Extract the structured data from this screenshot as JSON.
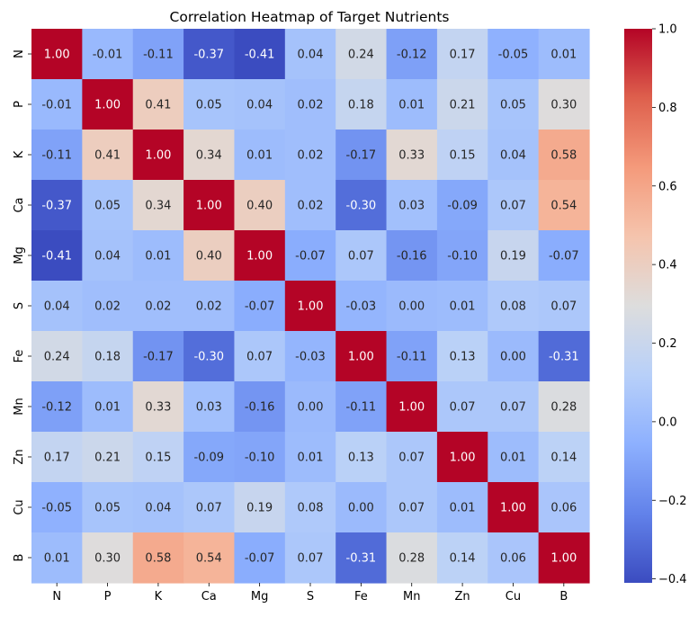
{
  "chart_data": {
    "type": "heatmap",
    "title": "Correlation Heatmap of Target Nutrients",
    "xlabel": "",
    "ylabel": "",
    "colormap": "coolwarm",
    "value_format": "2 decimals",
    "x_categories": [
      "N",
      "P",
      "K",
      "Ca",
      "Mg",
      "S",
      "Fe",
      "Mn",
      "Zn",
      "Cu",
      "B"
    ],
    "y_categories": [
      "N",
      "P",
      "K",
      "Ca",
      "Mg",
      "S",
      "Fe",
      "Mn",
      "Zn",
      "Cu",
      "B"
    ],
    "values": [
      [
        1.0,
        -0.01,
        -0.11,
        -0.37,
        -0.41,
        0.04,
        0.24,
        -0.12,
        0.17,
        -0.05,
        0.01
      ],
      [
        -0.01,
        1.0,
        0.41,
        0.05,
        0.04,
        0.02,
        0.18,
        0.01,
        0.21,
        0.05,
        0.3
      ],
      [
        -0.11,
        0.41,
        1.0,
        0.34,
        0.01,
        0.02,
        -0.17,
        0.33,
        0.15,
        0.04,
        0.58
      ],
      [
        -0.37,
        0.05,
        0.34,
        1.0,
        0.4,
        0.02,
        -0.3,
        0.03,
        -0.09,
        0.07,
        0.54
      ],
      [
        -0.41,
        0.04,
        0.01,
        0.4,
        1.0,
        -0.07,
        0.07,
        -0.16,
        -0.1,
        0.19,
        -0.07
      ],
      [
        0.04,
        0.02,
        0.02,
        0.02,
        -0.07,
        1.0,
        -0.03,
        -0.0,
        0.01,
        0.08,
        0.07
      ],
      [
        0.24,
        0.18,
        -0.17,
        -0.3,
        0.07,
        -0.03,
        1.0,
        -0.11,
        0.13,
        0.0,
        -0.31
      ],
      [
        -0.12,
        0.01,
        0.33,
        0.03,
        -0.16,
        -0.0,
        -0.11,
        1.0,
        0.07,
        0.07,
        0.28
      ],
      [
        0.17,
        0.21,
        0.15,
        -0.09,
        -0.1,
        0.01,
        0.13,
        0.07,
        1.0,
        0.01,
        0.14
      ],
      [
        -0.05,
        0.05,
        0.04,
        0.07,
        0.19,
        0.08,
        0.0,
        0.07,
        0.01,
        1.0,
        0.06
      ],
      [
        0.01,
        0.3,
        0.58,
        0.54,
        -0.07,
        0.07,
        -0.31,
        0.28,
        0.14,
        0.06,
        1.0
      ]
    ],
    "colorbar": {
      "vmin": -0.41,
      "vmax": 1.0,
      "ticks": [
        -0.4,
        -0.2,
        0.0,
        0.2,
        0.4,
        0.6,
        0.8,
        1.0
      ],
      "tick_labels": [
        "−0.4",
        "−0.2",
        "0.0",
        "0.2",
        "0.4",
        "0.6",
        "0.8",
        "1.0"
      ]
    },
    "grid": false,
    "legend": "colorbar right"
  }
}
